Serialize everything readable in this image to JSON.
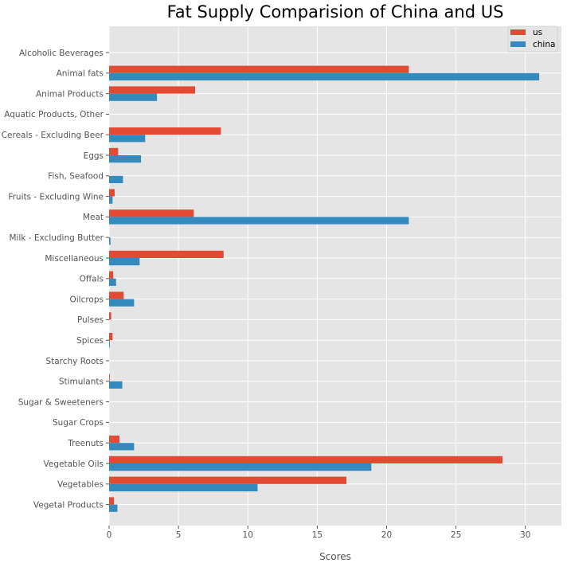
{
  "chart_data": {
    "type": "bar",
    "orientation": "horizontal",
    "title": "Fat Supply Comparision of China and US",
    "xlabel": "Scores",
    "ylabel": "",
    "xlim": [
      0,
      32.6
    ],
    "xticks": [
      0,
      5,
      10,
      15,
      20,
      25,
      30
    ],
    "grid": true,
    "legend_position": "top-right",
    "categories": [
      "Alcoholic Beverages",
      "Animal fats",
      "Animal Products",
      "Aquatic Products, Other",
      "Cereals - Excluding Beer",
      "Eggs",
      "Fish, Seafood",
      "Fruits - Excluding Wine",
      "Meat",
      "Milk - Excluding Butter",
      "Miscellaneous",
      "Offals",
      "Oilcrops",
      "Pulses",
      "Spices",
      "Starchy Roots",
      "Stimulants",
      "Sugar & Sweeteners",
      "Sugar Crops",
      "Treenuts",
      "Vegetable Oils",
      "Vegetables",
      "Vegetal Products"
    ],
    "series": [
      {
        "name": "us",
        "color": "#E24A33",
        "values": [
          0,
          21.6,
          6.2,
          0,
          8.05,
          0.65,
          0,
          0.4,
          6.1,
          0,
          8.25,
          0.3,
          1.05,
          0.15,
          0.25,
          0,
          0.05,
          0,
          0,
          0.75,
          28.35,
          17.1,
          0.35
        ]
      },
      {
        "name": "china",
        "color": "#348ABD",
        "values": [
          0,
          31.0,
          3.45,
          0,
          2.6,
          2.3,
          1.0,
          0.25,
          21.6,
          0.1,
          2.2,
          0.5,
          1.8,
          0,
          0.05,
          0,
          0.95,
          0,
          0,
          1.8,
          18.9,
          10.7,
          0.6
        ]
      }
    ]
  }
}
